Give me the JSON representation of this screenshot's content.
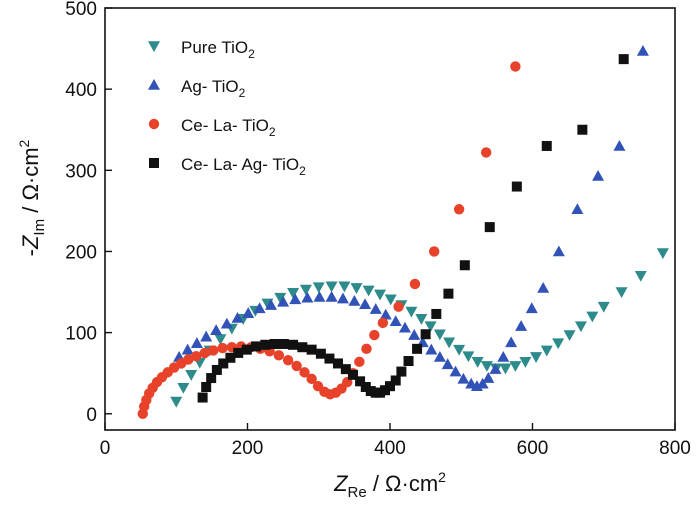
{
  "chart_data": {
    "type": "scatter",
    "title": "",
    "xlabel": {
      "main": "Z",
      "sub": "Re",
      "unit": " / Ω·cm",
      "sup": "2"
    },
    "ylabel": {
      "prefix": "-",
      "main": "Z",
      "sub": "Im",
      "unit": " / Ω·cm",
      "sup": "2"
    },
    "xlim": [
      0,
      800
    ],
    "ylim": [
      -20,
      500
    ],
    "xticks": [
      0,
      200,
      400,
      600,
      800
    ],
    "yticks": [
      0,
      100,
      200,
      300,
      400,
      500
    ],
    "grid": false,
    "legend_position": "top-left",
    "series": [
      {
        "name": "Pure TiO2",
        "label": {
          "base": "Pure TiO",
          "sub": "2"
        },
        "color": "#2e8b8b",
        "marker": "triangle-down",
        "points": [
          [
            100,
            15
          ],
          [
            110,
            32
          ],
          [
            121,
            48
          ],
          [
            133,
            63
          ],
          [
            147,
            78
          ],
          [
            162,
            92
          ],
          [
            178,
            105
          ],
          [
            194,
            117
          ],
          [
            211,
            127
          ],
          [
            228,
            136
          ],
          [
            246,
            143
          ],
          [
            264,
            149
          ],
          [
            282,
            153
          ],
          [
            300,
            156
          ],
          [
            318,
            157
          ],
          [
            336,
            157
          ],
          [
            353,
            155
          ],
          [
            370,
            152
          ],
          [
            386,
            147
          ],
          [
            401,
            141
          ],
          [
            416,
            134
          ],
          [
            430,
            126
          ],
          [
            444,
            117
          ],
          [
            457,
            108
          ],
          [
            470,
            98
          ],
          [
            483,
            88
          ],
          [
            497,
            79
          ],
          [
            510,
            71
          ],
          [
            523,
            64
          ],
          [
            536,
            59
          ],
          [
            549,
            56
          ],
          [
            562,
            56
          ],
          [
            576,
            59
          ],
          [
            590,
            64
          ],
          [
            605,
            70
          ],
          [
            620,
            78
          ],
          [
            636,
            87
          ],
          [
            652,
            97
          ],
          [
            668,
            108
          ],
          [
            684,
            120
          ],
          [
            700,
            132
          ],
          [
            725,
            150
          ],
          [
            752,
            170
          ],
          [
            783,
            198
          ]
        ]
      },
      {
        "name": "Ag- TiO2",
        "label": {
          "base": "Ag- TiO",
          "sub": "2"
        },
        "color": "#3153b8",
        "marker": "triangle-up",
        "points": [
          [
            104,
            70
          ],
          [
            116,
            79
          ],
          [
            129,
            87
          ],
          [
            142,
            95
          ],
          [
            156,
            103
          ],
          [
            171,
            111
          ],
          [
            186,
            118
          ],
          [
            201,
            124
          ],
          [
            217,
            130
          ],
          [
            233,
            134
          ],
          [
            250,
            138
          ],
          [
            267,
            141
          ],
          [
            284,
            143
          ],
          [
            301,
            144
          ],
          [
            318,
            144
          ],
          [
            334,
            142
          ],
          [
            350,
            139
          ],
          [
            365,
            135
          ],
          [
            380,
            129
          ],
          [
            394,
            122
          ],
          [
            408,
            114
          ],
          [
            421,
            106
          ],
          [
            434,
            97
          ],
          [
            446,
            88
          ],
          [
            458,
            79
          ],
          [
            470,
            70
          ],
          [
            481,
            61
          ],
          [
            492,
            52
          ],
          [
            503,
            43
          ],
          [
            514,
            37
          ],
          [
            522,
            34
          ],
          [
            530,
            37
          ],
          [
            538,
            44
          ],
          [
            548,
            55
          ],
          [
            559,
            70
          ],
          [
            570,
            88
          ],
          [
            584,
            108
          ],
          [
            599,
            130
          ],
          [
            615,
            155
          ],
          [
            637,
            200
          ],
          [
            663,
            252
          ],
          [
            692,
            293
          ],
          [
            722,
            330
          ],
          [
            755,
            447
          ]
        ]
      },
      {
        "name": "Ce- La- TiO2",
        "label": {
          "base": "Ce- La- TiO",
          "sub": "2"
        },
        "color": "#e8432a",
        "marker": "circle",
        "points": [
          [
            53,
            0
          ],
          [
            55,
            9
          ],
          [
            58,
            17
          ],
          [
            62,
            25
          ],
          [
            67,
            32
          ],
          [
            73,
            39
          ],
          [
            80,
            45
          ],
          [
            88,
            51
          ],
          [
            97,
            57
          ],
          [
            107,
            62
          ],
          [
            117,
            67
          ],
          [
            128,
            71
          ],
          [
            140,
            75
          ],
          [
            152,
            78
          ],
          [
            165,
            81
          ],
          [
            178,
            82
          ],
          [
            191,
            83
          ],
          [
            205,
            82
          ],
          [
            218,
            80
          ],
          [
            231,
            77
          ],
          [
            244,
            72
          ],
          [
            257,
            66
          ],
          [
            269,
            59
          ],
          [
            280,
            51
          ],
          [
            290,
            43
          ],
          [
            299,
            34
          ],
          [
            308,
            27
          ],
          [
            316,
            24
          ],
          [
            324,
            26
          ],
          [
            332,
            31
          ],
          [
            340,
            39
          ],
          [
            348,
            50
          ],
          [
            357,
            64
          ],
          [
            367,
            80
          ],
          [
            378,
            97
          ],
          [
            390,
            112
          ],
          [
            412,
            132
          ],
          [
            435,
            160
          ],
          [
            462,
            200
          ],
          [
            497,
            252
          ],
          [
            535,
            322
          ],
          [
            576,
            428
          ]
        ]
      },
      {
        "name": "Ce- La- Ag- TiO2",
        "label": {
          "base": "Ce- La- Ag- TiO",
          "sub": "2"
        },
        "color": "#111111",
        "marker": "square",
        "points": [
          [
            137,
            20
          ],
          [
            142,
            33
          ],
          [
            149,
            44
          ],
          [
            157,
            54
          ],
          [
            166,
            62
          ],
          [
            176,
            69
          ],
          [
            187,
            75
          ],
          [
            199,
            79
          ],
          [
            212,
            83
          ],
          [
            225,
            85
          ],
          [
            238,
            86
          ],
          [
            251,
            86
          ],
          [
            264,
            85
          ],
          [
            277,
            82
          ],
          [
            290,
            79
          ],
          [
            303,
            74
          ],
          [
            315,
            68
          ],
          [
            327,
            62
          ],
          [
            338,
            55
          ],
          [
            348,
            48
          ],
          [
            358,
            40
          ],
          [
            366,
            33
          ],
          [
            373,
            28
          ],
          [
            380,
            26
          ],
          [
            386,
            26
          ],
          [
            393,
            29
          ],
          [
            400,
            34
          ],
          [
            408,
            41
          ],
          [
            416,
            52
          ],
          [
            426,
            65
          ],
          [
            438,
            80
          ],
          [
            450,
            98
          ],
          [
            465,
            123
          ],
          [
            482,
            148
          ],
          [
            505,
            183
          ],
          [
            540,
            230
          ],
          [
            578,
            280
          ],
          [
            620,
            330
          ],
          [
            670,
            350
          ],
          [
            728,
            437
          ]
        ]
      }
    ]
  }
}
